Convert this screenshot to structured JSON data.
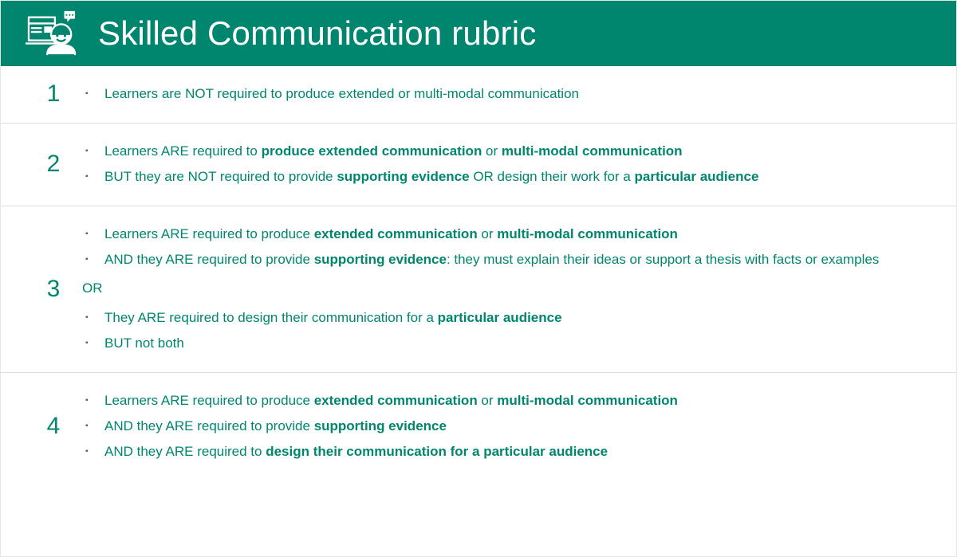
{
  "colors": {
    "header_bg": "#00856f",
    "header_text": "#ffffff",
    "teal_text": "#00856f",
    "divider": "#dcdcdc",
    "bullet": "#606060"
  },
  "header": {
    "title": "Skilled Communication rubric",
    "icon_name": "communication-icon"
  },
  "rubric": {
    "rows": [
      {
        "level": "1",
        "groups": [
          {
            "type": "bullets",
            "items": [
              {
                "html": "Learners are NOT required to produce extended or multi-modal communication"
              }
            ]
          }
        ]
      },
      {
        "level": "2",
        "groups": [
          {
            "type": "bullets",
            "items": [
              {
                "html": "Learners ARE required to <b>produce extended communication</b> or <b>multi-modal communication</b>"
              },
              {
                "html": "BUT they are NOT required to provide <b>supporting evidence</b> OR design their work for a <b>particular audience</b>"
              }
            ]
          }
        ]
      },
      {
        "level": "3",
        "groups": [
          {
            "type": "bullets",
            "items": [
              {
                "html": "Learners ARE required to produce <b>extended communication</b> or <b>multi-modal communication</b>"
              },
              {
                "html": "AND they ARE required to provide <b>supporting evidence</b>: they must explain their ideas or support a thesis with facts or examples"
              }
            ]
          },
          {
            "type": "or",
            "text": "OR"
          },
          {
            "type": "bullets",
            "items": [
              {
                "html": "They ARE required to design their communication for a <b>particular audience</b>"
              },
              {
                "html": "BUT not both"
              }
            ]
          }
        ]
      },
      {
        "level": "4",
        "groups": [
          {
            "type": "bullets",
            "items": [
              {
                "html": "Learners ARE required to produce <b>extended communication</b> or <b>multi-modal communication</b>"
              },
              {
                "html": "AND they ARE required to provide <b>supporting evidence</b>"
              },
              {
                "html": "AND they ARE required to <b>design their communication for a particular audience</b>"
              }
            ]
          }
        ]
      }
    ]
  }
}
